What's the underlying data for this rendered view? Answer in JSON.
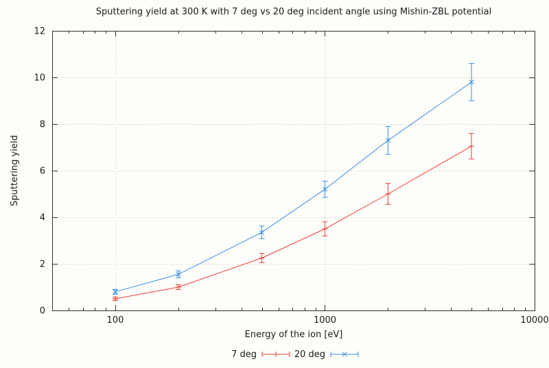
{
  "page": {
    "background": "#fdfef9",
    "axis_color": "#2e2e2e",
    "grid_color": "#b9b9b9",
    "text_color": "#1a1a1a"
  },
  "chart_data": {
    "type": "line",
    "title": "Sputtering yield at 300 K with 7 deg vs 20 deg incident angle using Mishin-ZBL potential",
    "xlabel": "Energy of the ion [eV]",
    "ylabel": "Sputtering yield",
    "x_scale": "log",
    "xlim": [
      50,
      10000
    ],
    "ylim": [
      0,
      12
    ],
    "x_major_ticks": [
      100,
      1000,
      10000
    ],
    "x_tick_labels": [
      "100",
      "1000",
      "10000"
    ],
    "y_major_ticks": [
      0,
      2,
      4,
      6,
      8,
      10,
      12
    ],
    "grid": true,
    "error_bars": true,
    "legend_position": "below-center",
    "x": [
      100,
      200,
      500,
      1000,
      2000,
      5000
    ],
    "series": [
      {
        "name": "7 deg",
        "color": "#ef3b32",
        "marker": "plus",
        "values": [
          0.5,
          1.0,
          2.25,
          3.5,
          5.0,
          7.05
        ],
        "yerr": [
          0.07,
          0.1,
          0.2,
          0.3,
          0.45,
          0.55
        ]
      },
      {
        "name": "20 deg",
        "color": "#3b8ce8",
        "marker": "x",
        "values": [
          0.8,
          1.55,
          3.35,
          5.2,
          7.3,
          9.8
        ],
        "yerr": [
          0.1,
          0.15,
          0.27,
          0.35,
          0.6,
          0.8
        ]
      }
    ]
  }
}
